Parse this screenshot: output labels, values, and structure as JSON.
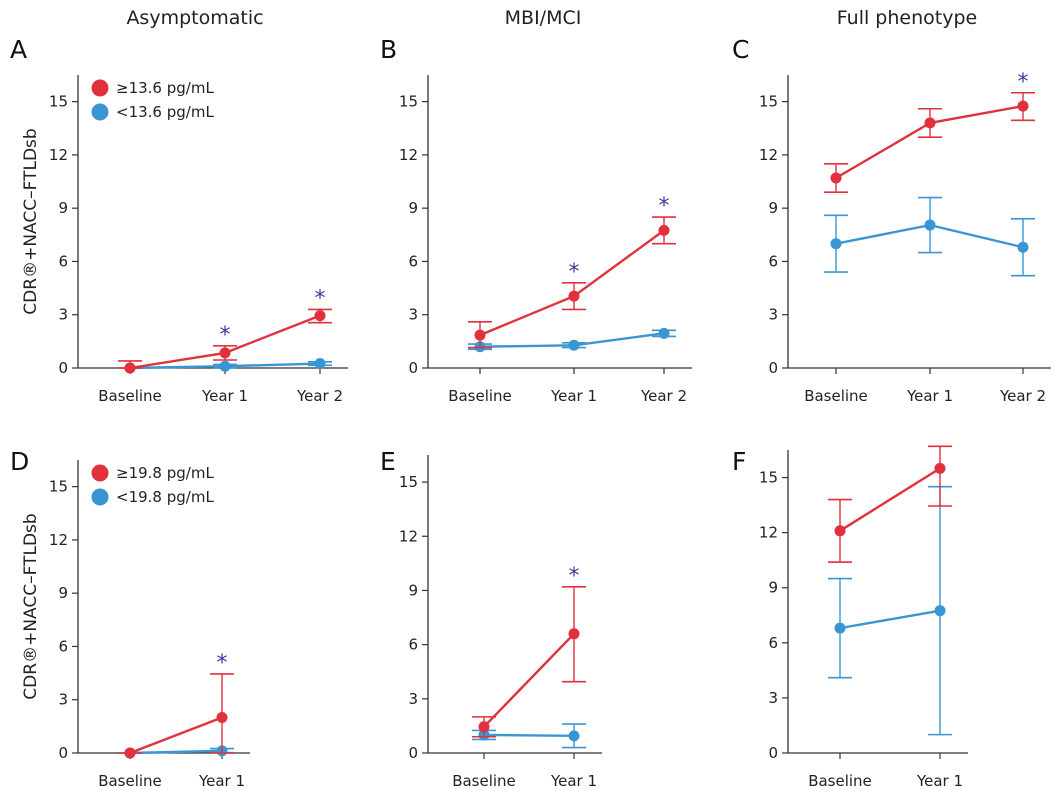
{
  "colors": {
    "high": "#e0313d",
    "low": "#3a96d2",
    "star": "#3b3b99",
    "axis": "#333333"
  },
  "column_titles": [
    "Asymptomatic",
    "MBI/MCI",
    "Full phenotype"
  ],
  "ylabel": "CDR®+NACC–FTLDsb",
  "chart_data": [
    {
      "panel": "A",
      "type": "line",
      "column": "Asymptomatic",
      "categories": [
        "Baseline",
        "Year 1",
        "Year 2"
      ],
      "ylim": [
        0,
        16.5
      ],
      "yticks": [
        0,
        3,
        6,
        9,
        12,
        15
      ],
      "ylabel": "CDR®+NACC–FTLDsb",
      "legend": [
        "≥13.6 pg/mL",
        "<13.6 pg/mL"
      ],
      "series": [
        {
          "name": "≥13.6 pg/mL",
          "color": "#e0313d",
          "values": [
            0.0,
            0.85,
            2.95
          ],
          "lower": [
            0.0,
            0.45,
            2.55
          ],
          "upper": [
            0.4,
            1.25,
            3.3
          ]
        },
        {
          "name": "<13.6 pg/mL",
          "color": "#3a96d2",
          "values": [
            0.0,
            0.1,
            0.25
          ],
          "lower": [
            0.0,
            0.0,
            0.15
          ],
          "upper": [
            0.0,
            0.2,
            0.35
          ]
        }
      ],
      "stars": [
        "",
        "*",
        "*"
      ]
    },
    {
      "panel": "B",
      "type": "line",
      "column": "MBI/MCI",
      "categories": [
        "Baseline",
        "Year 1",
        "Year 2"
      ],
      "ylim": [
        0,
        16.5
      ],
      "yticks": [
        0,
        3,
        6,
        9,
        12,
        15
      ],
      "ylabel": "",
      "legend": [],
      "series": [
        {
          "color": "#e0313d",
          "values": [
            1.85,
            4.05,
            7.75
          ],
          "lower": [
            1.15,
            3.3,
            7.0
          ],
          "upper": [
            2.6,
            4.8,
            8.5
          ]
        },
        {
          "color": "#3a96d2",
          "values": [
            1.2,
            1.28,
            1.95
          ],
          "lower": [
            1.05,
            1.15,
            1.78
          ],
          "upper": [
            1.35,
            1.42,
            2.12
          ]
        }
      ],
      "stars": [
        "",
        "*",
        "*"
      ]
    },
    {
      "panel": "C",
      "type": "line",
      "column": "Full phenotype",
      "categories": [
        "Baseline",
        "Year 1",
        "Year 2"
      ],
      "ylim": [
        0,
        16.5
      ],
      "yticks": [
        0,
        3,
        6,
        9,
        12,
        15
      ],
      "ylabel": "",
      "legend": [],
      "series": [
        {
          "color": "#e0313d",
          "values": [
            10.7,
            13.8,
            14.75
          ],
          "lower": [
            9.9,
            13.0,
            13.95
          ],
          "upper": [
            11.5,
            14.6,
            15.5
          ]
        },
        {
          "color": "#3a96d2",
          "values": [
            7.0,
            8.05,
            6.8
          ],
          "lower": [
            5.4,
            6.5,
            5.2
          ],
          "upper": [
            8.6,
            9.6,
            8.4
          ]
        }
      ],
      "stars": [
        "",
        "",
        "*"
      ]
    },
    {
      "panel": "D",
      "type": "line",
      "column": "Asymptomatic",
      "categories": [
        "Baseline",
        "Year 1"
      ],
      "ylim": [
        0,
        16.5
      ],
      "yticks": [
        0,
        3,
        6,
        9,
        12,
        15
      ],
      "ylabel": "CDR®+NACC–FTLDsb",
      "legend": [
        "≥19.8 pg/mL",
        "<19.8 pg/mL"
      ],
      "series": [
        {
          "name": "≥19.8 pg/mL",
          "color": "#e0313d",
          "values": [
            0.0,
            2.0
          ],
          "lower": [
            0.0,
            0.0
          ],
          "upper": [
            0.0,
            4.45
          ]
        },
        {
          "name": "<19.8 pg/mL",
          "color": "#3a96d2",
          "values": [
            0.0,
            0.12
          ],
          "lower": [
            0.0,
            0.02
          ],
          "upper": [
            0.0,
            0.25
          ]
        }
      ],
      "stars": [
        "",
        "*"
      ]
    },
    {
      "panel": "E",
      "type": "line",
      "column": "MBI/MCI",
      "categories": [
        "Baseline",
        "Year 1"
      ],
      "ylim": [
        0,
        16.5
      ],
      "yticks": [
        0,
        3,
        6,
        9,
        12,
        15
      ],
      "ylabel": "",
      "legend": [],
      "series": [
        {
          "color": "#e0313d",
          "values": [
            1.45,
            6.6
          ],
          "lower": [
            0.9,
            3.95
          ],
          "upper": [
            2.0,
            9.2
          ]
        },
        {
          "color": "#3a96d2",
          "values": [
            1.0,
            0.95
          ],
          "lower": [
            0.75,
            0.3
          ],
          "upper": [
            1.25,
            1.6
          ]
        }
      ],
      "stars": [
        "",
        "*"
      ]
    },
    {
      "panel": "F",
      "type": "line",
      "column": "Full phenotype",
      "categories": [
        "Baseline",
        "Year 1"
      ],
      "ylim": [
        0,
        16.5
      ],
      "yticks": [
        0,
        3,
        6,
        9,
        12,
        15
      ],
      "ylabel": "",
      "legend": [],
      "series": [
        {
          "color": "#e0313d",
          "values": [
            12.1,
            15.5
          ],
          "lower": [
            10.4,
            13.45
          ],
          "upper": [
            13.8,
            16.7
          ]
        },
        {
          "color": "#3a96d2",
          "values": [
            6.8,
            7.75
          ],
          "lower": [
            4.1,
            1.0
          ],
          "upper": [
            9.5,
            14.5
          ]
        }
      ],
      "stars": [
        "",
        ""
      ]
    }
  ]
}
